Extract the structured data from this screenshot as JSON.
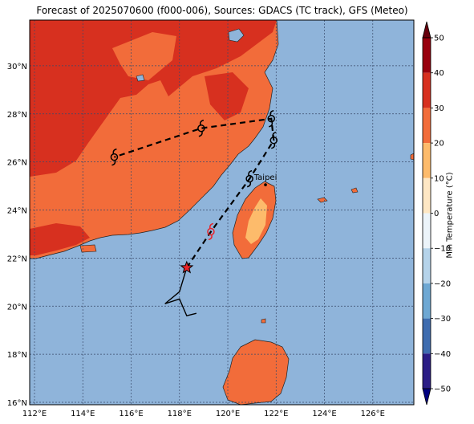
{
  "title": "Forecast of 2025070600 (f000-006), Sources: GDACS (TC track), GFS (Meteo)",
  "map": {
    "lon_range": [
      111.8,
      127.7
    ],
    "lat_range": [
      15.9,
      31.9
    ],
    "lon_ticks": [
      "112°E",
      "114°E",
      "116°E",
      "118°E",
      "120°E",
      "122°E",
      "124°E",
      "126°E"
    ],
    "lat_ticks": [
      "30°N",
      "28°N",
      "26°N",
      "24°N",
      "22°N",
      "20°N",
      "18°N",
      "16°N"
    ],
    "gridlines": true,
    "ocean_color": "#8fb4da",
    "place_label": "Taipei"
  },
  "colorbar": {
    "label": "Min Temperature (°C)",
    "ticks": [
      "50",
      "40",
      "30",
      "20",
      "10",
      "0",
      "−10",
      "−20",
      "−30",
      "−40",
      "−50"
    ],
    "bins": [
      {
        "range": [
          40,
          50
        ],
        "color": "#99000d"
      },
      {
        "range": [
          30,
          40
        ],
        "color": "#d7301f"
      },
      {
        "range": [
          20,
          30
        ],
        "color": "#f26c3a"
      },
      {
        "range": [
          10,
          20
        ],
        "color": "#fdbb6b"
      },
      {
        "range": [
          0,
          10
        ],
        "color": "#fee7c4"
      },
      {
        "range": [
          -10,
          0
        ],
        "color": "#ecf4fa"
      },
      {
        "range": [
          -20,
          -10
        ],
        "color": "#b5d3ea"
      },
      {
        "range": [
          -30,
          -20
        ],
        "color": "#6ea8d3"
      },
      {
        "range": [
          -40,
          -30
        ],
        "color": "#3f6db0"
      },
      {
        "range": [
          -50,
          -40
        ],
        "color": "#2b1d86"
      }
    ]
  },
  "track": {
    "forecast_points": [
      {
        "lon": 115.3,
        "lat": 26.2
      },
      {
        "lon": 118.9,
        "lat": 27.4
      },
      {
        "lon": 121.8,
        "lat": 27.8
      },
      {
        "lon": 121.9,
        "lat": 26.9
      },
      {
        "lon": 120.9,
        "lat": 25.3
      },
      {
        "lon": 119.3,
        "lat": 23.1
      }
    ],
    "current_position": {
      "lon": 118.3,
      "lat": 21.6
    },
    "past_track": [
      {
        "lon": 118.3,
        "lat": 21.6
      },
      {
        "lon": 118.0,
        "lat": 20.6
      },
      {
        "lon": 117.4,
        "lat": 20.1
      },
      {
        "lon": 118.0,
        "lat": 20.3
      },
      {
        "lon": 118.3,
        "lat": 19.6
      },
      {
        "lon": 118.7,
        "lat": 19.7
      }
    ]
  }
}
